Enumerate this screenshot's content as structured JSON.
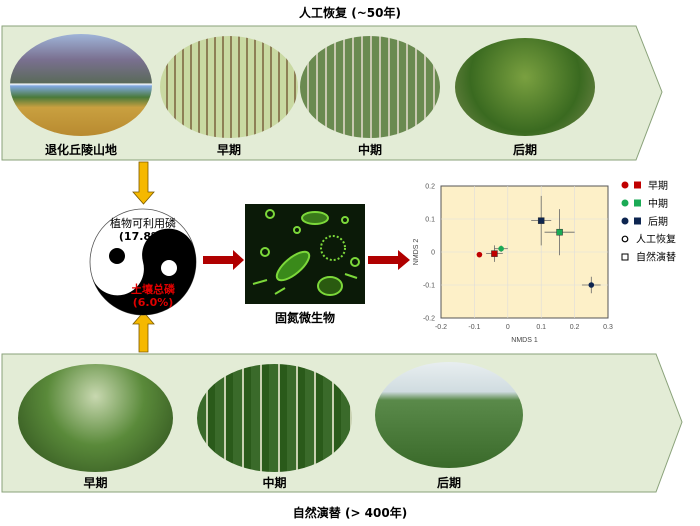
{
  "top": {
    "title": "人工恢复 (~50年)",
    "stages": [
      "退化丘陵山地",
      "早期",
      "中期",
      "后期"
    ]
  },
  "bottom": {
    "title": "自然演替 (> 400年)",
    "stages": [
      "早期",
      "中期",
      "后期"
    ]
  },
  "yinyang": {
    "upper_label": "植物可利用磷",
    "upper_value": "(17.8%)",
    "lower_label": "土壤总磷",
    "lower_value": "(6.0%)",
    "lower_color": "#e00000"
  },
  "microbe": {
    "label": "固氮微生物"
  },
  "colors": {
    "band": "#e3ecd6",
    "yellow_arrow": "#f5b800",
    "red_arrow": "#b00000",
    "plot_bg": "#fdf0c8"
  },
  "chart_data": {
    "type": "scatter",
    "xlabel": "NMDS 1",
    "ylabel": "NMDS 2",
    "xlim": [
      -0.2,
      0.3
    ],
    "ylim": [
      -0.2,
      0.2
    ],
    "xticks": [
      "-0.2",
      "-0.1",
      "0",
      "0.1",
      "0.2",
      "0.3"
    ],
    "yticks": [
      "0.2",
      "0.1",
      "0",
      "-0.1",
      "-0.2"
    ],
    "grid": true,
    "legend": {
      "placement": "right",
      "stages": [
        {
          "label": "早期",
          "color": "#c00000"
        },
        {
          "label": "中期",
          "color": "#1aaa55"
        },
        {
          "label": "后期",
          "color": "#0d2550"
        }
      ],
      "shapes": [
        {
          "label": "人工恢复",
          "marker": "circle"
        },
        {
          "label": "自然演替",
          "marker": "square"
        }
      ]
    },
    "points": [
      {
        "group": "人工恢复",
        "stage": "早期",
        "x": -0.085,
        "y": -0.008,
        "xerr": 0.008,
        "yerr": 0.005
      },
      {
        "group": "人工恢复",
        "stage": "中期",
        "x": -0.02,
        "y": 0.01,
        "xerr": 0.02,
        "yerr": 0.01
      },
      {
        "group": "人工恢复",
        "stage": "后期",
        "x": 0.25,
        "y": -0.1,
        "xerr": 0.028,
        "yerr": 0.025
      },
      {
        "group": "自然演替",
        "stage": "早期",
        "x": -0.04,
        "y": -0.005,
        "xerr": 0.025,
        "yerr": 0.025
      },
      {
        "group": "自然演替",
        "stage": "中期",
        "x": 0.155,
        "y": 0.06,
        "xerr": 0.045,
        "yerr": 0.07
      },
      {
        "group": "自然演替",
        "stage": "后期",
        "x": 0.1,
        "y": 0.095,
        "xerr": 0.03,
        "yerr": 0.075
      }
    ]
  }
}
